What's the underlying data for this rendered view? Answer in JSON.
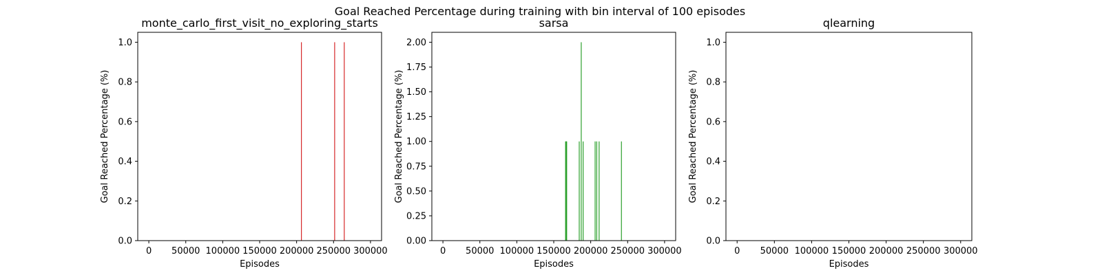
{
  "figure": {
    "suptitle": "Goal Reached Percentage during training with bin interval of 100 episodes"
  },
  "chart_data": [
    {
      "type": "bar",
      "title": "monte_carlo_first_visit_no_exploring_starts",
      "xlabel": "Episodes",
      "ylabel": "Goal Reached Percentage (%)",
      "xlim": [
        -15000,
        315000
      ],
      "ylim": [
        0,
        1.05
      ],
      "xticks": [
        0,
        50000,
        100000,
        150000,
        200000,
        250000,
        300000
      ],
      "yticks": [
        0.0,
        0.2,
        0.4,
        0.6,
        0.8,
        1.0
      ],
      "ytick_labels": [
        "0.0",
        "0.2",
        "0.4",
        "0.6",
        "0.8",
        "1.0"
      ],
      "bin_width": 100,
      "color": "#d62728",
      "x": [
        206500,
        251500,
        264500
      ],
      "values": [
        1,
        1,
        1
      ]
    },
    {
      "type": "bar",
      "title": "sarsa",
      "xlabel": "Episodes",
      "ylabel": "Goal Reached Percentage (%)",
      "xlim": [
        -15000,
        315000
      ],
      "ylim": [
        0,
        2.1
      ],
      "xticks": [
        0,
        50000,
        100000,
        150000,
        200000,
        250000,
        300000
      ],
      "yticks": [
        0.0,
        0.25,
        0.5,
        0.75,
        1.0,
        1.25,
        1.5,
        1.75,
        2.0
      ],
      "ytick_labels": [
        "0.00",
        "0.25",
        "0.50",
        "0.75",
        "1.00",
        "1.25",
        "1.50",
        "1.75",
        "2.00"
      ],
      "bin_width": 100,
      "color": "#2ca02c",
      "x": [
        166000,
        166600,
        167000,
        167500,
        184500,
        187200,
        189800,
        206000,
        208200,
        211400,
        241600
      ],
      "values": [
        1,
        1,
        1,
        1,
        1,
        2,
        1,
        1,
        1,
        1,
        1
      ]
    },
    {
      "type": "bar",
      "title": "qlearning",
      "xlabel": "Episodes",
      "ylabel": "Goal Reached Percentage (%)",
      "xlim": [
        -15000,
        315000
      ],
      "ylim": [
        0,
        1.05
      ],
      "xticks": [
        0,
        50000,
        100000,
        150000,
        200000,
        250000,
        300000
      ],
      "yticks": [
        0.0,
        0.2,
        0.4,
        0.6,
        0.8,
        1.0
      ],
      "ytick_labels": [
        "0.0",
        "0.2",
        "0.4",
        "0.6",
        "0.8",
        "1.0"
      ],
      "bin_width": 100,
      "color": "#1f77b4",
      "x": [],
      "values": []
    }
  ]
}
